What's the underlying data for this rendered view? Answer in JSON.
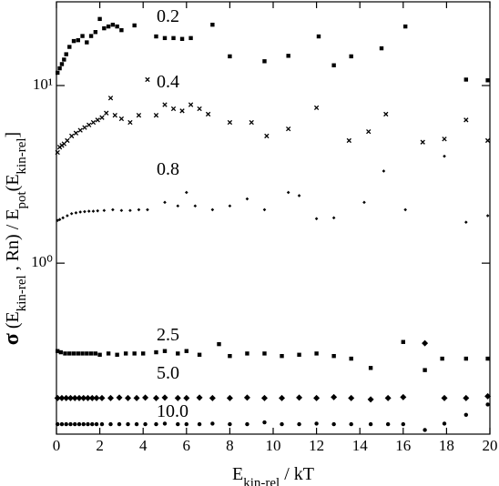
{
  "chart_data": {
    "type": "scatter",
    "x_label": [
      {
        "text": "E"
      },
      {
        "text": "kin-rel",
        "sub": true
      },
      {
        "text": " / kT"
      }
    ],
    "y_label": [
      {
        "text": "σ"
      },
      {
        "text": " (E"
      },
      {
        "text": "kin-rel",
        "sub": true
      },
      {
        "text": " , Rn) / E"
      },
      {
        "text": "pot",
        "sub": true
      },
      {
        "text": "(E"
      },
      {
        "text": "kin-rel",
        "sub": true
      },
      {
        "text": "]"
      }
    ],
    "xlim": [
      0,
      20
    ],
    "xticks": [
      0,
      2,
      4,
      6,
      8,
      10,
      12,
      14,
      16,
      18,
      20
    ],
    "ylim": [
      0.109,
      29.6
    ],
    "log_y": true,
    "yticks": [
      {
        "value": 1,
        "label": "10⁰"
      },
      {
        "value": 10,
        "label": "10¹"
      }
    ],
    "series": [
      {
        "name": "0.2",
        "marker": "square",
        "color": "#000",
        "x": [
          0.05,
          0.15,
          0.25,
          0.35,
          0.45,
          0.6,
          0.8,
          1.0,
          1.2,
          1.4,
          1.6,
          1.8,
          2.0,
          2.2,
          2.4,
          2.6,
          2.8,
          3.0,
          3.6,
          4.6,
          5.0,
          5.4,
          5.8,
          6.2,
          7.2,
          8.0,
          9.6,
          10.7,
          12.1,
          12.8,
          13.6,
          15.0,
          16.1,
          18.9,
          19.9
        ],
        "values": [
          11.8,
          12.5,
          13.2,
          14,
          15,
          16.5,
          17.8,
          18,
          19,
          17.5,
          19,
          20,
          23.7,
          21,
          21.5,
          22,
          21.5,
          20.5,
          21.8,
          18.9,
          18.5,
          18.5,
          18.3,
          18.5,
          22,
          14.6,
          13.7,
          14.7,
          18.9,
          13,
          14.6,
          16.2,
          21.5,
          10.8,
          10.7
        ]
      },
      {
        "name": "0.4",
        "marker": "cross",
        "color": "#000",
        "x": [
          0.05,
          0.15,
          0.25,
          0.35,
          0.5,
          0.7,
          0.9,
          1.1,
          1.3,
          1.5,
          1.7,
          1.9,
          2.1,
          2.3,
          2.5,
          2.7,
          3.0,
          3.4,
          3.8,
          4.2,
          4.6,
          5.0,
          5.4,
          5.8,
          6.2,
          6.6,
          7.0,
          8.0,
          9.0,
          9.7,
          10.7,
          12.0,
          13.5,
          14.4,
          15.2,
          16.9,
          17.9,
          18.9,
          19.9
        ],
        "values": [
          4.2,
          4.5,
          4.6,
          4.7,
          4.9,
          5.2,
          5.4,
          5.6,
          5.8,
          6.0,
          6.2,
          6.4,
          6.6,
          7.0,
          8.5,
          6.8,
          6.5,
          6.2,
          6.8,
          10.8,
          6.8,
          7.8,
          7.4,
          7.2,
          7.8,
          7.4,
          6.9,
          6.2,
          6.2,
          5.2,
          5.7,
          7.5,
          4.9,
          5.5,
          6.9,
          4.8,
          5.0,
          6.4,
          4.9
        ]
      },
      {
        "name": "0.8",
        "marker": "plus",
        "color": "#000",
        "x": [
          0.05,
          0.15,
          0.3,
          0.5,
          0.7,
          0.9,
          1.1,
          1.3,
          1.5,
          1.7,
          1.9,
          2.2,
          2.6,
          3.0,
          3.4,
          3.8,
          4.2,
          5.0,
          5.6,
          6.0,
          6.4,
          7.2,
          8.0,
          8.8,
          9.6,
          10.7,
          11.2,
          12.0,
          12.8,
          14.2,
          15.1,
          16.1,
          17.9,
          18.9,
          19.9
        ],
        "values": [
          1.74,
          1.76,
          1.8,
          1.85,
          1.9,
          1.92,
          1.94,
          1.95,
          1.96,
          1.96,
          1.97,
          1.98,
          2.0,
          1.98,
          1.98,
          2.0,
          2.0,
          2.2,
          2.1,
          2.5,
          2.1,
          2.0,
          2.1,
          2.3,
          2.0,
          2.5,
          2.4,
          1.78,
          1.8,
          2.2,
          3.3,
          2.0,
          4.0,
          1.7,
          1.85
        ]
      },
      {
        "name": "2.5",
        "marker": "square",
        "color": "#000",
        "x": [
          0.05,
          0.2,
          0.4,
          0.6,
          0.8,
          1.0,
          1.2,
          1.4,
          1.6,
          1.8,
          2.0,
          2.4,
          2.8,
          3.2,
          3.6,
          4.0,
          4.6,
          5.0,
          5.6,
          6.0,
          6.6,
          7.5,
          8.0,
          8.8,
          9.6,
          10.4,
          11.2,
          12.0,
          12.8,
          13.6,
          14.5,
          16.0,
          17.0,
          17.8,
          18.9,
          19.9
        ],
        "values": [
          0.32,
          0.315,
          0.31,
          0.31,
          0.31,
          0.31,
          0.31,
          0.31,
          0.31,
          0.31,
          0.305,
          0.31,
          0.305,
          0.31,
          0.31,
          0.31,
          0.315,
          0.32,
          0.31,
          0.32,
          0.305,
          0.35,
          0.3,
          0.31,
          0.31,
          0.3,
          0.305,
          0.31,
          0.3,
          0.29,
          0.257,
          0.36,
          0.25,
          0.29,
          0.29,
          0.29
        ]
      },
      {
        "name": "5.0",
        "marker": "diamond",
        "color": "#000",
        "x": [
          0.05,
          0.25,
          0.45,
          0.65,
          0.85,
          1.05,
          1.25,
          1.45,
          1.65,
          1.85,
          2.1,
          2.5,
          2.9,
          3.3,
          3.7,
          4.1,
          4.6,
          5.0,
          5.6,
          6.0,
          6.6,
          7.2,
          8.0,
          8.8,
          9.6,
          10.4,
          11.2,
          12.0,
          12.8,
          13.6,
          14.5,
          15.3,
          16.0,
          17.0,
          17.9,
          18.9,
          19.9
        ],
        "values": [
          0.174,
          0.174,
          0.174,
          0.174,
          0.174,
          0.174,
          0.174,
          0.174,
          0.174,
          0.174,
          0.174,
          0.174,
          0.175,
          0.174,
          0.174,
          0.175,
          0.174,
          0.175,
          0.174,
          0.174,
          0.175,
          0.174,
          0.174,
          0.175,
          0.174,
          0.174,
          0.175,
          0.174,
          0.176,
          0.174,
          0.171,
          0.174,
          0.176,
          0.354,
          0.174,
          0.174,
          0.178
        ]
      },
      {
        "name": "10.0",
        "marker": "circle",
        "color": "#000",
        "x": [
          0.05,
          0.25,
          0.45,
          0.65,
          0.85,
          1.05,
          1.25,
          1.45,
          1.65,
          1.85,
          2.1,
          2.5,
          2.9,
          3.3,
          3.7,
          4.1,
          4.6,
          5.0,
          5.6,
          6.0,
          6.6,
          7.2,
          8.0,
          8.8,
          9.6,
          10.4,
          11.2,
          12.0,
          12.8,
          13.6,
          14.5,
          15.3,
          16.0,
          17.0,
          17.9,
          18.9,
          19.9
        ],
        "values": [
          0.124,
          0.124,
          0.124,
          0.124,
          0.124,
          0.124,
          0.124,
          0.124,
          0.124,
          0.124,
          0.124,
          0.124,
          0.124,
          0.124,
          0.124,
          0.124,
          0.124,
          0.125,
          0.124,
          0.124,
          0.124,
          0.125,
          0.124,
          0.124,
          0.127,
          0.124,
          0.124,
          0.125,
          0.124,
          0.124,
          0.124,
          0.124,
          0.124,
          0.115,
          0.125,
          0.14,
          0.16
        ]
      }
    ]
  }
}
